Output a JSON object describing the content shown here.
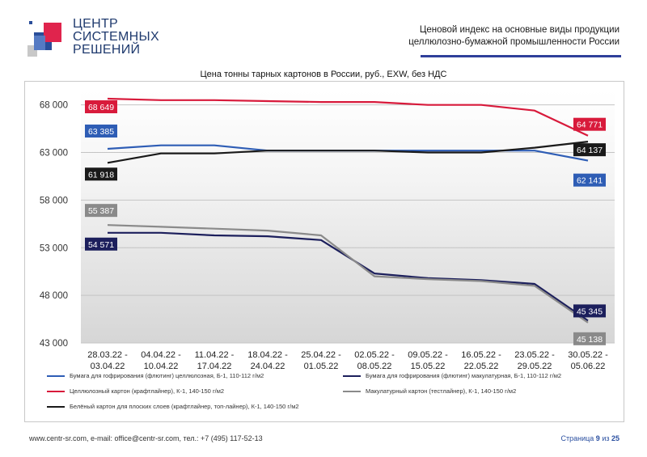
{
  "header": {
    "logo_lines": [
      "ЦЕНТР",
      "СИСТЕМНЫХ",
      "РЕШЕНИЙ"
    ],
    "title_line1": "Ценовой индекс на основные виды продукции",
    "title_line2": "целлюлозно-бумажной промышленности России",
    "rule_color": "#2f3f9a"
  },
  "footer": {
    "contacts": "www.centr-sr.com, e-mail: office@centr-sr.com, тел.: +7 (495) 117-52-13",
    "page_word": "Страница",
    "page_current": "9",
    "page_of": "из",
    "page_total": "25"
  },
  "chart_data": {
    "type": "line",
    "title": "Цена тонны тарных картонов в России, руб., EXW, без НДС",
    "xlabel": "",
    "ylabel": "",
    "ylim": [
      43000,
      69500
    ],
    "yticks": [
      43000,
      48000,
      53000,
      58000,
      63000,
      68000
    ],
    "ytick_labels": [
      "43 000",
      "48 000",
      "53 000",
      "58 000",
      "63 000",
      "68 000"
    ],
    "grid": true,
    "legend_position": "bottom",
    "categories": [
      [
        "28.03.22 -",
        "03.04.22"
      ],
      [
        "04.04.22 -",
        "10.04.22"
      ],
      [
        "11.04.22 -",
        "17.04.22"
      ],
      [
        "18.04.22 -",
        "24.04.22"
      ],
      [
        "25.04.22 -",
        "01.05.22"
      ],
      [
        "02.05.22 -",
        "08.05.22"
      ],
      [
        "09.05.22 -",
        "15.05.22"
      ],
      [
        "16.05.22 -",
        "22.05.22"
      ],
      [
        "23.05.22 -",
        "29.05.22"
      ],
      [
        "30.05.22 -",
        "05.06.22"
      ]
    ],
    "series": [
      {
        "name": "Бумага для гофрирования (флютинг) целлюлозная, Б-1, 110-112 г/м2",
        "color": "#2e5db5",
        "values": [
          63385,
          63750,
          63750,
          63200,
          63200,
          63200,
          63200,
          63200,
          63200,
          62141
        ],
        "start_label": "63 385",
        "end_label": "62 141"
      },
      {
        "name": "Бумага для гофрирования (флютинг) макулатурная, Б-1, 110-112 г/м2",
        "color": "#1c1f5c",
        "values": [
          54571,
          54571,
          54300,
          54200,
          53800,
          50300,
          49800,
          49600,
          49200,
          45345
        ],
        "start_label": "54 571",
        "end_label": "45 345"
      },
      {
        "name": "Целлюлозный картон (крафтлайнер), К-1, 140-150 г/м2",
        "color": "#d81a3b",
        "values": [
          68649,
          68500,
          68500,
          68400,
          68300,
          68300,
          68000,
          68000,
          67400,
          64771
        ],
        "start_label": "68 649",
        "end_label": "64 771"
      },
      {
        "name": "Макулатурный картон (тестлайнер), К-1, 140-150 г/м2",
        "color": "#8a8a8a",
        "values": [
          55387,
          55200,
          55000,
          54800,
          54300,
          50000,
          49700,
          49500,
          49000,
          45138
        ],
        "start_label": "55 387",
        "end_label": "45 138"
      },
      {
        "name": "Белёный картон для плоских слоев (крафтлайнер, топ-лайнер), К-1, 140-150 г/м2",
        "color": "#1a1a1a",
        "values": [
          61918,
          62900,
          62900,
          63200,
          63200,
          63200,
          63000,
          63000,
          63500,
          64137
        ],
        "start_label": "61 918",
        "end_label": "64 137"
      }
    ]
  }
}
